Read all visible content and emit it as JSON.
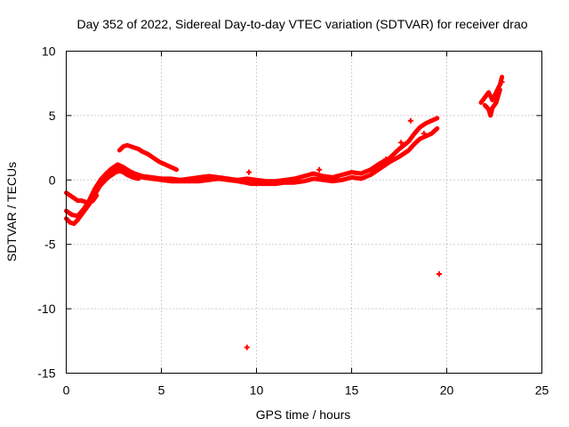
{
  "chart_data": {
    "type": "scatter",
    "title": "Day 352 of 2022, Sidereal Day-to-day VTEC variation (SDTVAR) for receiver drao",
    "xlabel": "GPS time / hours",
    "ylabel": "SDTVAR / TECUs",
    "xlim": [
      0,
      25
    ],
    "ylim": [
      -15,
      10
    ],
    "xticks": [
      "0",
      "5",
      "10",
      "15",
      "20",
      "25"
    ],
    "yticks": [
      "-15",
      "-10",
      "-5",
      "0",
      "5",
      "10"
    ],
    "grid": true,
    "marker_color": "#ff0000",
    "series": [
      {
        "name": "drao",
        "segments": [
          [
            [
              0.0,
              -1.0
            ],
            [
              0.2,
              -1.2
            ],
            [
              0.4,
              -1.4
            ],
            [
              0.6,
              -1.6
            ],
            [
              0.8,
              -1.6
            ],
            [
              1.0,
              -1.7
            ],
            [
              1.2,
              -1.8
            ],
            [
              1.4,
              -1.6
            ],
            [
              1.6,
              -1.2
            ]
          ],
          [
            [
              0.0,
              -3.0
            ],
            [
              0.2,
              -3.3
            ],
            [
              0.4,
              -3.4
            ],
            [
              0.6,
              -3.1
            ],
            [
              0.8,
              -2.7
            ],
            [
              1.0,
              -2.3
            ],
            [
              1.2,
              -1.9
            ],
            [
              1.4,
              -1.4
            ],
            [
              1.6,
              -0.9
            ],
            [
              1.8,
              -0.4
            ],
            [
              2.0,
              0.0
            ],
            [
              2.2,
              0.3
            ],
            [
              2.4,
              0.6
            ],
            [
              2.6,
              0.8
            ],
            [
              2.8,
              0.9
            ],
            [
              3.0,
              0.9
            ],
            [
              3.2,
              0.8
            ],
            [
              3.4,
              0.6
            ],
            [
              3.6,
              0.4
            ],
            [
              3.8,
              0.3
            ],
            [
              4.0,
              0.2
            ],
            [
              4.5,
              0.1
            ],
            [
              5.0,
              0.0
            ],
            [
              5.5,
              -0.1
            ],
            [
              6.0,
              -0.1
            ],
            [
              6.5,
              -0.1
            ],
            [
              7.0,
              -0.1
            ],
            [
              7.5,
              0.0
            ],
            [
              8.0,
              0.1
            ],
            [
              8.5,
              0.0
            ],
            [
              9.0,
              -0.1
            ],
            [
              9.4,
              -0.2
            ],
            [
              9.7,
              -0.3
            ],
            [
              10.0,
              -0.3
            ],
            [
              10.5,
              -0.3
            ],
            [
              11.0,
              -0.3
            ],
            [
              11.5,
              -0.2
            ],
            [
              12.0,
              -0.2
            ],
            [
              12.5,
              -0.1
            ],
            [
              13.0,
              0.1
            ],
            [
              13.5,
              0.0
            ],
            [
              14.0,
              -0.1
            ],
            [
              14.5,
              0.0
            ],
            [
              15.0,
              0.2
            ],
            [
              15.5,
              0.1
            ],
            [
              16.0,
              0.4
            ],
            [
              16.5,
              0.9
            ],
            [
              17.0,
              1.4
            ],
            [
              17.5,
              1.8
            ],
            [
              18.0,
              2.3
            ],
            [
              18.3,
              2.8
            ],
            [
              18.6,
              3.2
            ],
            [
              18.9,
              3.4
            ],
            [
              19.2,
              3.6
            ],
            [
              19.5,
              4.0
            ]
          ],
          [
            [
              0.0,
              -2.4
            ],
            [
              0.3,
              -2.7
            ],
            [
              0.6,
              -2.8
            ],
            [
              0.9,
              -2.3
            ],
            [
              1.2,
              -1.6
            ],
            [
              1.5,
              -0.7
            ],
            [
              1.8,
              0.0
            ],
            [
              2.1,
              0.5
            ],
            [
              2.4,
              0.9
            ],
            [
              2.7,
              1.2
            ],
            [
              3.0,
              1.0
            ],
            [
              3.3,
              0.7
            ],
            [
              3.6,
              0.5
            ],
            [
              4.0,
              0.3
            ],
            [
              4.5,
              0.2
            ],
            [
              5.0,
              0.1
            ],
            [
              5.5,
              0.1
            ],
            [
              6.0,
              0.0
            ],
            [
              6.5,
              0.1
            ],
            [
              7.0,
              0.2
            ],
            [
              7.5,
              0.3
            ],
            [
              8.0,
              0.2
            ],
            [
              8.5,
              0.1
            ],
            [
              9.0,
              0.0
            ],
            [
              9.5,
              0.1
            ],
            [
              10.0,
              0.0
            ],
            [
              10.5,
              -0.1
            ],
            [
              11.0,
              -0.1
            ],
            [
              11.5,
              0.0
            ],
            [
              12.0,
              0.1
            ],
            [
              12.5,
              0.3
            ],
            [
              13.0,
              0.5
            ],
            [
              13.5,
              0.3
            ],
            [
              14.0,
              0.2
            ],
            [
              14.5,
              0.4
            ],
            [
              15.0,
              0.6
            ],
            [
              15.5,
              0.5
            ],
            [
              16.0,
              0.8
            ],
            [
              16.5,
              1.3
            ],
            [
              17.0,
              1.7
            ],
            [
              17.5,
              2.4
            ],
            [
              18.0,
              3.0
            ],
            [
              18.3,
              3.6
            ],
            [
              18.6,
              4.1
            ],
            [
              18.9,
              4.4
            ],
            [
              19.2,
              4.6
            ],
            [
              19.5,
              4.8
            ]
          ],
          [
            [
              1.6,
              -0.8
            ],
            [
              1.8,
              -0.4
            ],
            [
              2.0,
              -0.1
            ],
            [
              2.2,
              0.2
            ],
            [
              2.4,
              0.4
            ],
            [
              2.6,
              0.6
            ],
            [
              2.8,
              0.7
            ],
            [
              3.0,
              0.6
            ],
            [
              3.2,
              0.4
            ],
            [
              3.5,
              0.2
            ],
            [
              3.8,
              0.1
            ]
          ],
          [
            [
              2.8,
              2.3
            ],
            [
              3.0,
              2.6
            ],
            [
              3.2,
              2.7
            ],
            [
              3.4,
              2.6
            ],
            [
              3.6,
              2.5
            ],
            [
              3.8,
              2.4
            ],
            [
              4.0,
              2.2
            ],
            [
              4.3,
              2.0
            ],
            [
              4.6,
              1.7
            ],
            [
              4.9,
              1.4
            ],
            [
              5.2,
              1.2
            ],
            [
              5.5,
              1.0
            ],
            [
              5.8,
              0.8
            ]
          ],
          [
            [
              21.8,
              6.0
            ],
            [
              22.0,
              6.4
            ],
            [
              22.2,
              6.8
            ],
            [
              22.4,
              6.2
            ],
            [
              22.6,
              6.8
            ],
            [
              22.8,
              7.4
            ],
            [
              22.9,
              8.0
            ]
          ],
          [
            [
              22.0,
              5.8
            ],
            [
              22.2,
              5.5
            ],
            [
              22.3,
              5.0
            ],
            [
              22.4,
              5.6
            ],
            [
              22.6,
              6.0
            ],
            [
              22.8,
              7.0
            ]
          ]
        ],
        "points": [
          [
            9.5,
            -13.0
          ],
          [
            19.6,
            -7.3
          ],
          [
            18.1,
            4.6
          ],
          [
            18.8,
            3.6
          ],
          [
            17.6,
            2.9
          ],
          [
            16.8,
            1.6
          ],
          [
            9.6,
            0.6
          ],
          [
            13.3,
            0.8
          ],
          [
            22.9,
            7.6
          ]
        ]
      }
    ]
  }
}
